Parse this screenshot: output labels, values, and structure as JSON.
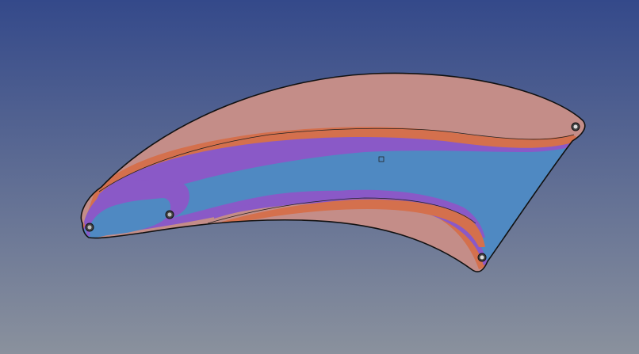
{
  "viewport": {
    "background": {
      "top_color": "#34498a",
      "bottom_color": "#8a919d"
    }
  },
  "part": {
    "outline_color": "#111111",
    "zone_colors": {
      "outer": "#c48d88",
      "orange": "#d4704d",
      "purple": "#8a59c7",
      "blue": "#4f89c2"
    },
    "holes": [
      "left-hole-outer",
      "left-hole-inner",
      "right-top-hole",
      "right-bottom-hole"
    ]
  }
}
